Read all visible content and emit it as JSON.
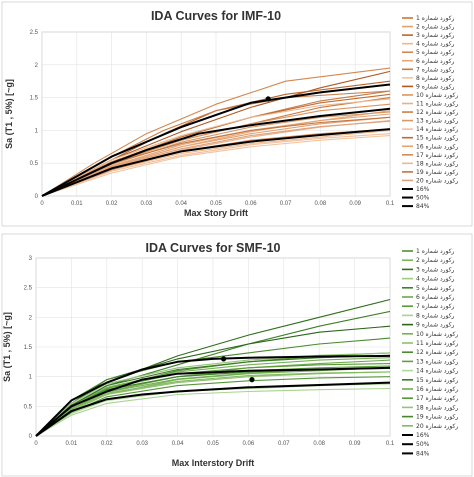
{
  "chart_data": [
    {
      "type": "line",
      "title": "IDA Curves for IMF-10",
      "xlabel": "Max Story Drift",
      "ylabel": "Sa (T1 , 5%) [~g]",
      "xlim": [
        0,
        0.1
      ],
      "ylim": [
        0,
        2.5
      ],
      "xticks": [
        "0",
        "0.01",
        "0.02",
        "0.03",
        "0.04",
        "0.05",
        "0.06",
        "0.07",
        "0.08",
        "0.09",
        "0.1"
      ],
      "yticks": [
        "0",
        "0.5",
        "1",
        "1.5",
        "2",
        "2.5"
      ],
      "grid": true,
      "legend_position": "right",
      "record_color": "#d4904a",
      "fractile_color": "#000000",
      "series": [
        {
          "name": "رکورد شماره 1",
          "x": [
            0,
            0.02,
            0.04,
            0.06,
            0.08,
            0.1
          ],
          "y": [
            0,
            0.5,
            0.85,
            1.1,
            1.35,
            1.5
          ]
        },
        {
          "name": "رکورد شماره 2",
          "x": [
            0,
            0.02,
            0.04,
            0.06,
            0.08,
            0.1
          ],
          "y": [
            0,
            0.45,
            0.75,
            0.95,
            1.1,
            1.2
          ]
        },
        {
          "name": "رکورد شماره 3",
          "x": [
            0,
            0.02,
            0.035,
            0.05,
            0.07,
            0.1
          ],
          "y": [
            0,
            0.55,
            0.95,
            1.3,
            1.55,
            1.75
          ]
        },
        {
          "name": "رکورد شماره 4",
          "x": [
            0,
            0.02,
            0.04,
            0.06,
            0.08,
            0.1
          ],
          "y": [
            0,
            0.4,
            0.65,
            0.8,
            0.9,
            1.0
          ]
        },
        {
          "name": "رکورد شماره 5",
          "x": [
            0,
            0.015,
            0.03,
            0.05,
            0.07,
            0.1
          ],
          "y": [
            0,
            0.5,
            0.95,
            1.4,
            1.75,
            1.95
          ]
        },
        {
          "name": "رکورد شماره 6",
          "x": [
            0,
            0.02,
            0.04,
            0.06,
            0.08,
            0.1
          ],
          "y": [
            0,
            0.45,
            0.75,
            0.98,
            1.15,
            1.3
          ]
        },
        {
          "name": "رکورد شماره 7",
          "x": [
            0,
            0.02,
            0.04,
            0.06,
            0.08,
            0.1
          ],
          "y": [
            0,
            0.5,
            0.9,
            1.2,
            1.45,
            1.6
          ]
        },
        {
          "name": "رکورد شماره 8",
          "x": [
            0,
            0.02,
            0.04,
            0.06,
            0.08,
            0.1
          ],
          "y": [
            0,
            0.35,
            0.6,
            0.75,
            0.85,
            0.92
          ]
        },
        {
          "name": "رکورد شماره 9",
          "x": [
            0,
            0.02,
            0.04,
            0.06,
            0.08,
            0.1
          ],
          "y": [
            0,
            0.55,
            0.98,
            1.35,
            1.65,
            1.9
          ]
        },
        {
          "name": "رکورد شماره 10",
          "x": [
            0,
            0.02,
            0.04,
            0.06,
            0.08,
            0.1
          ],
          "y": [
            0,
            0.5,
            0.85,
            1.1,
            1.3,
            1.4
          ]
        },
        {
          "name": "رکورد شماره 11",
          "x": [
            0,
            0.02,
            0.04,
            0.06,
            0.08,
            0.1
          ],
          "y": [
            0,
            0.42,
            0.7,
            0.9,
            1.05,
            1.15
          ]
        },
        {
          "name": "رکورد شماره 12",
          "x": [
            0,
            0.02,
            0.035,
            0.05,
            0.07,
            0.1
          ],
          "y": [
            0,
            0.6,
            1.0,
            1.3,
            1.5,
            1.6
          ]
        },
        {
          "name": "رکورد شماره 13",
          "x": [
            0,
            0.02,
            0.04,
            0.06,
            0.08,
            0.1
          ],
          "y": [
            0,
            0.48,
            0.82,
            1.05,
            1.2,
            1.28
          ]
        },
        {
          "name": "رکورد شماره 14",
          "x": [
            0,
            0.02,
            0.04,
            0.06,
            0.08,
            0.1
          ],
          "y": [
            0,
            0.38,
            0.62,
            0.78,
            0.88,
            0.95
          ]
        },
        {
          "name": "رکورد شماره 15",
          "x": [
            0,
            0.02,
            0.04,
            0.06,
            0.08,
            0.1
          ],
          "y": [
            0,
            0.52,
            0.9,
            1.2,
            1.42,
            1.55
          ]
        },
        {
          "name": "رکورد شماره 16",
          "x": [
            0,
            0.02,
            0.04,
            0.06,
            0.08,
            0.1
          ],
          "y": [
            0,
            0.46,
            0.78,
            1.0,
            1.15,
            1.25
          ]
        },
        {
          "name": "رکورد شماره 17",
          "x": [
            0,
            0.02,
            0.04,
            0.06,
            0.08,
            0.1
          ],
          "y": [
            0,
            0.4,
            0.68,
            0.85,
            0.95,
            1.02
          ]
        },
        {
          "name": "رکورد شماره 18",
          "x": [
            0,
            0.02,
            0.04,
            0.06,
            0.08,
            0.1
          ],
          "y": [
            0,
            0.55,
            0.92,
            1.2,
            1.38,
            1.48
          ]
        },
        {
          "name": "رکورد شماره 19",
          "x": [
            0,
            0.02,
            0.04,
            0.06,
            0.08,
            0.1
          ],
          "y": [
            0,
            0.5,
            0.8,
            1.0,
            1.12,
            1.2
          ]
        },
        {
          "name": "رکورد شماره 20",
          "x": [
            0,
            0.02,
            0.04,
            0.06,
            0.08,
            0.1
          ],
          "y": [
            0,
            0.44,
            0.72,
            0.92,
            1.06,
            1.14
          ]
        },
        {
          "name": "16%",
          "x": [
            0,
            0.02,
            0.04,
            0.06,
            0.08,
            0.1
          ],
          "y": [
            0,
            0.42,
            0.68,
            0.83,
            0.93,
            1.02
          ]
        },
        {
          "name": "50%",
          "x": [
            0,
            0.02,
            0.03,
            0.045,
            0.06,
            0.08,
            0.1
          ],
          "y": [
            0,
            0.5,
            0.7,
            0.95,
            1.08,
            1.22,
            1.33
          ]
        },
        {
          "name": "84%",
          "x": [
            0,
            0.02,
            0.04,
            0.06,
            0.08,
            0.1
          ],
          "y": [
            0,
            0.6,
            1.05,
            1.42,
            1.58,
            1.7
          ]
        }
      ],
      "markers": [
        {
          "x": 0.065,
          "y": 1.48
        }
      ]
    },
    {
      "type": "line",
      "title": "IDA Curves for SMF-10",
      "xlabel": "Max Interstory Drift",
      "ylabel": "Sa (T1 , 5%) [~g]",
      "xlim": [
        0,
        0.1
      ],
      "ylim": [
        0,
        3
      ],
      "xticks": [
        "0",
        "0.01",
        "0.02",
        "0.03",
        "0.04",
        "0.05",
        "0.06",
        "0.07",
        "0.08",
        "0.09",
        "0.1"
      ],
      "yticks": [
        "0",
        "0.5",
        "1",
        "1.5",
        "2",
        "2.5",
        "3"
      ],
      "grid": true,
      "legend_position": "right",
      "record_color": "#5a9e3c",
      "fractile_color": "#000000",
      "series": [
        {
          "name": "رکورد شماره 1",
          "x": [
            0,
            0.01,
            0.02,
            0.04,
            0.06,
            0.08,
            0.1
          ],
          "y": [
            0,
            0.5,
            0.8,
            1.1,
            1.25,
            1.35,
            1.4
          ]
        },
        {
          "name": "رکورد شماره 2",
          "x": [
            0,
            0.01,
            0.02,
            0.04,
            0.06,
            0.08,
            0.1
          ],
          "y": [
            0,
            0.45,
            0.7,
            0.95,
            1.05,
            1.1,
            1.15
          ]
        },
        {
          "name": "رکورد شماره 3",
          "x": [
            0,
            0.01,
            0.02,
            0.04,
            0.06,
            0.08,
            0.1
          ],
          "y": [
            0,
            0.55,
            0.9,
            1.35,
            1.7,
            2.0,
            2.3
          ]
        },
        {
          "name": "رکورد شماره 4",
          "x": [
            0,
            0.01,
            0.02,
            0.04,
            0.06,
            0.08,
            0.1
          ],
          "y": [
            0,
            0.4,
            0.6,
            0.75,
            0.8,
            0.85,
            0.88
          ]
        },
        {
          "name": "رکورد شماره 5",
          "x": [
            0,
            0.01,
            0.02,
            0.04,
            0.06,
            0.08,
            0.1
          ],
          "y": [
            0,
            0.5,
            0.85,
            1.2,
            1.55,
            1.85,
            2.1
          ]
        },
        {
          "name": "رکورد شماره 6",
          "x": [
            0,
            0.01,
            0.02,
            0.04,
            0.06,
            0.08,
            0.1
          ],
          "y": [
            0,
            0.45,
            0.75,
            1.0,
            1.15,
            1.22,
            1.28
          ]
        },
        {
          "name": "رکورد شماره 7",
          "x": [
            0,
            0.01,
            0.02,
            0.04,
            0.06,
            0.08,
            0.1
          ],
          "y": [
            0,
            0.5,
            0.8,
            1.05,
            1.15,
            1.2,
            1.22
          ]
        },
        {
          "name": "رکورد شماره 8",
          "x": [
            0,
            0.01,
            0.02,
            0.04,
            0.06,
            0.08,
            0.1
          ],
          "y": [
            0,
            0.35,
            0.55,
            0.7,
            0.75,
            0.78,
            0.8
          ]
        },
        {
          "name": "رکورد شماره 9",
          "x": [
            0,
            0.01,
            0.02,
            0.04,
            0.06,
            0.08,
            0.1
          ],
          "y": [
            0,
            0.55,
            0.95,
            1.3,
            1.55,
            1.75,
            1.85
          ]
        },
        {
          "name": "رکورد شماره 10",
          "x": [
            0,
            0.01,
            0.02,
            0.04,
            0.06,
            0.08,
            0.1
          ],
          "y": [
            0,
            0.5,
            0.82,
            1.08,
            1.2,
            1.28,
            1.32
          ]
        },
        {
          "name": "رکورد شماره 11",
          "x": [
            0,
            0.01,
            0.02,
            0.04,
            0.06,
            0.08,
            0.1
          ],
          "y": [
            0,
            0.42,
            0.7,
            0.9,
            1.0,
            1.05,
            1.08
          ]
        },
        {
          "name": "رکورد شماره 12",
          "x": [
            0,
            0.01,
            0.02,
            0.04,
            0.06,
            0.08,
            0.1
          ],
          "y": [
            0,
            0.6,
            0.95,
            1.25,
            1.4,
            1.55,
            1.65
          ]
        },
        {
          "name": "رکورد شماره 13",
          "x": [
            0,
            0.01,
            0.02,
            0.04,
            0.06,
            0.08,
            0.1
          ],
          "y": [
            0,
            0.48,
            0.78,
            1.0,
            1.1,
            1.15,
            1.18
          ]
        },
        {
          "name": "رکورد شماره 14",
          "x": [
            0,
            0.01,
            0.02,
            0.04,
            0.06,
            0.08,
            0.1
          ],
          "y": [
            0,
            0.38,
            0.6,
            0.76,
            0.82,
            0.86,
            0.9
          ]
        },
        {
          "name": "رکورد شماره 15",
          "x": [
            0,
            0.01,
            0.02,
            0.04,
            0.06,
            0.08,
            0.1
          ],
          "y": [
            0,
            0.52,
            0.85,
            1.12,
            1.25,
            1.32,
            1.36
          ]
        },
        {
          "name": "رکورد شماره 16",
          "x": [
            0,
            0.01,
            0.02,
            0.04,
            0.06,
            0.08,
            0.1
          ],
          "y": [
            0,
            0.46,
            0.74,
            0.96,
            1.06,
            1.12,
            1.15
          ]
        },
        {
          "name": "رکورد شماره 17",
          "x": [
            0,
            0.01,
            0.02,
            0.04,
            0.06,
            0.08,
            0.1
          ],
          "y": [
            0,
            0.4,
            0.66,
            0.85,
            0.93,
            0.98,
            1.0
          ]
        },
        {
          "name": "رکورد شماره 18",
          "x": [
            0,
            0.01,
            0.02,
            0.04,
            0.06,
            0.08,
            0.1
          ],
          "y": [
            0,
            0.55,
            0.88,
            1.15,
            1.28,
            1.36,
            1.4
          ]
        },
        {
          "name": "رکورد شماره 19",
          "x": [
            0,
            0.01,
            0.02,
            0.04,
            0.06,
            0.08,
            0.1
          ],
          "y": [
            0,
            0.5,
            0.78,
            1.0,
            1.08,
            1.12,
            1.14
          ]
        },
        {
          "name": "رکورد شماره 20",
          "x": [
            0,
            0.01,
            0.02,
            0.04,
            0.06,
            0.08,
            0.1
          ],
          "y": [
            0,
            0.44,
            0.72,
            0.92,
            1.02,
            1.06,
            1.08
          ]
        },
        {
          "name": "16%",
          "x": [
            0,
            0.01,
            0.02,
            0.03,
            0.04,
            0.06,
            0.08,
            0.1
          ],
          "y": [
            0,
            0.42,
            0.62,
            0.7,
            0.75,
            0.82,
            0.86,
            0.9
          ]
        },
        {
          "name": "50%",
          "x": [
            0,
            0.01,
            0.02,
            0.03,
            0.04,
            0.06,
            0.08,
            0.1
          ],
          "y": [
            0,
            0.5,
            0.75,
            0.95,
            1.05,
            1.1,
            1.12,
            1.15
          ]
        },
        {
          "name": "84%",
          "x": [
            0,
            0.01,
            0.02,
            0.03,
            0.04,
            0.05,
            0.06,
            0.08,
            0.1
          ],
          "y": [
            0,
            0.6,
            0.9,
            1.12,
            1.25,
            1.3,
            1.32,
            1.34,
            1.35
          ]
        }
      ],
      "markers": [
        {
          "x": 0.053,
          "y": 1.3
        },
        {
          "x": 0.061,
          "y": 0.95
        }
      ]
    }
  ]
}
